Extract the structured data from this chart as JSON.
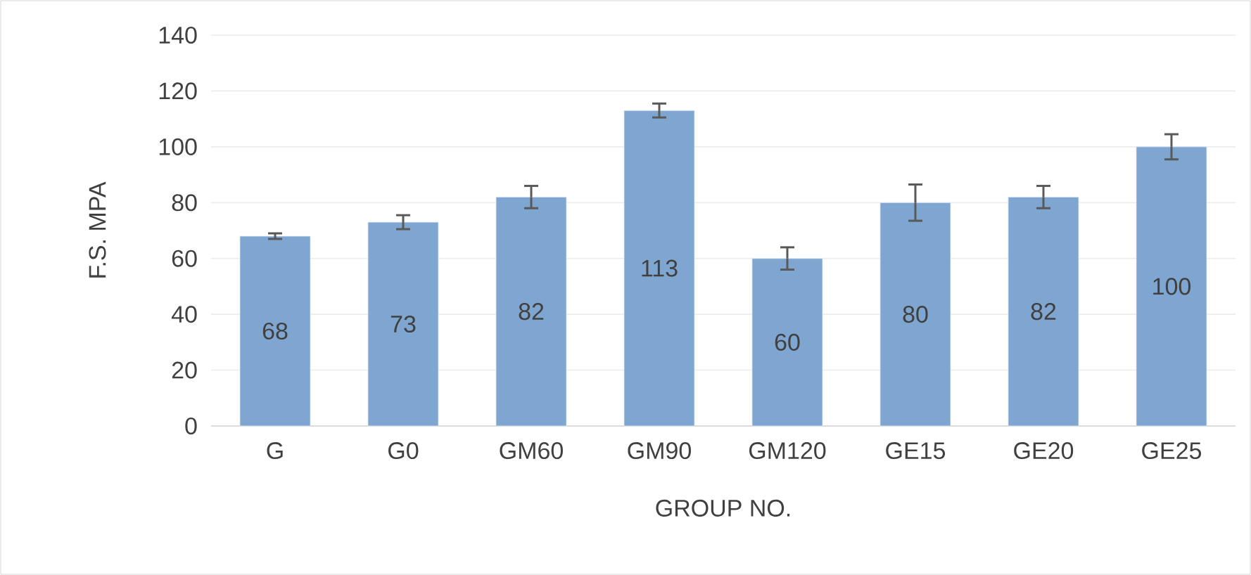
{
  "chart_data": {
    "type": "bar",
    "xlabel": "GROUP NO.",
    "ylabel": "F.S. MPA",
    "categories": [
      "G",
      "G0",
      "GM60",
      "GM90",
      "GM120",
      "GE15",
      "GE20",
      "GE25"
    ],
    "values": [
      68,
      73,
      82,
      113,
      60,
      80,
      82,
      100
    ],
    "errors": [
      1,
      2.5,
      4,
      2.5,
      4,
      6.5,
      4,
      4.5
    ],
    "color": "#7fa6d1",
    "data_labels": true,
    "grid": "y",
    "ylim": [
      0,
      140
    ],
    "yticks": [
      0,
      20,
      40,
      60,
      80,
      100,
      120,
      140
    ]
  }
}
